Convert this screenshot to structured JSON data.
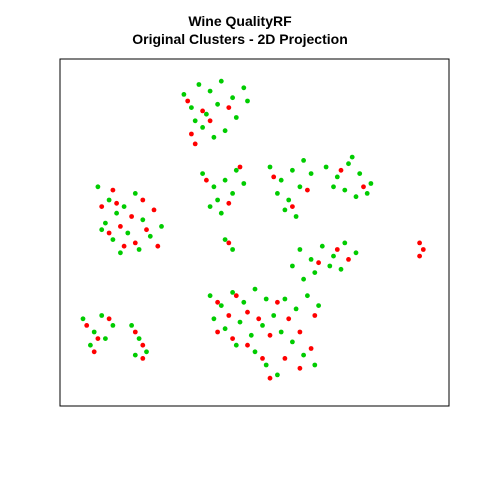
{
  "chart_data": {
    "type": "scatter",
    "title_lines": [
      "Wine QualityRF",
      "Original Clusters - 2D Projection"
    ],
    "xlabel": "",
    "ylabel": "",
    "axes_visible": false,
    "grid": false,
    "legend": "none",
    "colors": {
      "red": "#ff0000",
      "green": "#00cc00"
    },
    "note": "",
    "series": [
      {
        "color_key": "green",
        "points": [
          [
            0.31,
            0.92
          ],
          [
            0.35,
            0.95
          ],
          [
            0.38,
            0.93
          ],
          [
            0.41,
            0.96
          ],
          [
            0.44,
            0.91
          ],
          [
            0.47,
            0.94
          ],
          [
            0.33,
            0.88
          ],
          [
            0.37,
            0.86
          ],
          [
            0.4,
            0.89
          ],
          [
            0.45,
            0.85
          ],
          [
            0.36,
            0.82
          ],
          [
            0.42,
            0.81
          ],
          [
            0.48,
            0.9
          ],
          [
            0.39,
            0.79
          ],
          [
            0.34,
            0.84
          ],
          [
            0.36,
            0.68
          ],
          [
            0.39,
            0.64
          ],
          [
            0.42,
            0.66
          ],
          [
            0.44,
            0.62
          ],
          [
            0.47,
            0.65
          ],
          [
            0.4,
            0.6
          ],
          [
            0.45,
            0.69
          ],
          [
            0.38,
            0.58
          ],
          [
            0.41,
            0.56
          ],
          [
            0.54,
            0.7
          ],
          [
            0.57,
            0.66
          ],
          [
            0.6,
            0.69
          ],
          [
            0.63,
            0.72
          ],
          [
            0.56,
            0.62
          ],
          [
            0.59,
            0.6
          ],
          [
            0.62,
            0.64
          ],
          [
            0.65,
            0.68
          ],
          [
            0.58,
            0.57
          ],
          [
            0.61,
            0.55
          ],
          [
            0.69,
            0.7
          ],
          [
            0.72,
            0.67
          ],
          [
            0.75,
            0.71
          ],
          [
            0.78,
            0.68
          ],
          [
            0.81,
            0.65
          ],
          [
            0.74,
            0.63
          ],
          [
            0.77,
            0.61
          ],
          [
            0.71,
            0.64
          ],
          [
            0.8,
            0.62
          ],
          [
            0.76,
            0.73
          ],
          [
            0.08,
            0.64
          ],
          [
            0.11,
            0.6
          ],
          [
            0.13,
            0.56
          ],
          [
            0.1,
            0.53
          ],
          [
            0.15,
            0.58
          ],
          [
            0.18,
            0.62
          ],
          [
            0.12,
            0.48
          ],
          [
            0.16,
            0.5
          ],
          [
            0.2,
            0.54
          ],
          [
            0.22,
            0.49
          ],
          [
            0.09,
            0.51
          ],
          [
            0.19,
            0.45
          ],
          [
            0.25,
            0.52
          ],
          [
            0.14,
            0.44
          ],
          [
            0.42,
            0.48
          ],
          [
            0.44,
            0.45
          ],
          [
            0.62,
            0.45
          ],
          [
            0.65,
            0.42
          ],
          [
            0.68,
            0.46
          ],
          [
            0.71,
            0.43
          ],
          [
            0.74,
            0.47
          ],
          [
            0.77,
            0.44
          ],
          [
            0.66,
            0.38
          ],
          [
            0.7,
            0.4
          ],
          [
            0.73,
            0.39
          ],
          [
            0.6,
            0.4
          ],
          [
            0.63,
            0.36
          ],
          [
            0.04,
            0.24
          ],
          [
            0.07,
            0.2
          ],
          [
            0.09,
            0.25
          ],
          [
            0.06,
            0.16
          ],
          [
            0.1,
            0.18
          ],
          [
            0.12,
            0.22
          ],
          [
            0.17,
            0.22
          ],
          [
            0.19,
            0.18
          ],
          [
            0.21,
            0.14
          ],
          [
            0.18,
            0.13
          ],
          [
            0.38,
            0.31
          ],
          [
            0.41,
            0.28
          ],
          [
            0.44,
            0.32
          ],
          [
            0.47,
            0.29
          ],
          [
            0.5,
            0.33
          ],
          [
            0.53,
            0.3
          ],
          [
            0.39,
            0.24
          ],
          [
            0.42,
            0.21
          ],
          [
            0.46,
            0.23
          ],
          [
            0.49,
            0.19
          ],
          [
            0.52,
            0.22
          ],
          [
            0.55,
            0.25
          ],
          [
            0.58,
            0.3
          ],
          [
            0.61,
            0.27
          ],
          [
            0.64,
            0.31
          ],
          [
            0.67,
            0.28
          ],
          [
            0.57,
            0.2
          ],
          [
            0.6,
            0.17
          ],
          [
            0.63,
            0.13
          ],
          [
            0.66,
            0.1
          ],
          [
            0.53,
            0.1
          ],
          [
            0.56,
            0.07
          ],
          [
            0.5,
            0.14
          ],
          [
            0.45,
            0.16
          ]
        ]
      },
      {
        "color_key": "red",
        "points": [
          [
            0.32,
            0.9
          ],
          [
            0.36,
            0.87
          ],
          [
            0.33,
            0.8
          ],
          [
            0.43,
            0.88
          ],
          [
            0.38,
            0.84
          ],
          [
            0.34,
            0.77
          ],
          [
            0.37,
            0.66
          ],
          [
            0.43,
            0.59
          ],
          [
            0.46,
            0.7
          ],
          [
            0.55,
            0.67
          ],
          [
            0.6,
            0.58
          ],
          [
            0.64,
            0.63
          ],
          [
            0.73,
            0.69
          ],
          [
            0.79,
            0.64
          ],
          [
            0.09,
            0.58
          ],
          [
            0.12,
            0.63
          ],
          [
            0.14,
            0.52
          ],
          [
            0.17,
            0.55
          ],
          [
            0.21,
            0.51
          ],
          [
            0.23,
            0.57
          ],
          [
            0.18,
            0.47
          ],
          [
            0.15,
            0.46
          ],
          [
            0.11,
            0.5
          ],
          [
            0.24,
            0.46
          ],
          [
            0.13,
            0.59
          ],
          [
            0.2,
            0.6
          ],
          [
            0.43,
            0.47
          ],
          [
            0.67,
            0.41
          ],
          [
            0.72,
            0.45
          ],
          [
            0.75,
            0.42
          ],
          [
            0.94,
            0.47
          ],
          [
            0.95,
            0.45
          ],
          [
            0.94,
            0.43
          ],
          [
            0.05,
            0.22
          ],
          [
            0.08,
            0.18
          ],
          [
            0.11,
            0.24
          ],
          [
            0.07,
            0.14
          ],
          [
            0.18,
            0.2
          ],
          [
            0.2,
            0.16
          ],
          [
            0.2,
            0.12
          ],
          [
            0.4,
            0.29
          ],
          [
            0.43,
            0.25
          ],
          [
            0.45,
            0.31
          ],
          [
            0.48,
            0.26
          ],
          [
            0.4,
            0.2
          ],
          [
            0.44,
            0.18
          ],
          [
            0.51,
            0.24
          ],
          [
            0.54,
            0.19
          ],
          [
            0.59,
            0.24
          ],
          [
            0.62,
            0.2
          ],
          [
            0.65,
            0.15
          ],
          [
            0.58,
            0.12
          ],
          [
            0.62,
            0.09
          ],
          [
            0.54,
            0.06
          ],
          [
            0.52,
            0.12
          ],
          [
            0.48,
            0.16
          ],
          [
            0.66,
            0.25
          ],
          [
            0.56,
            0.29
          ]
        ]
      }
    ]
  }
}
